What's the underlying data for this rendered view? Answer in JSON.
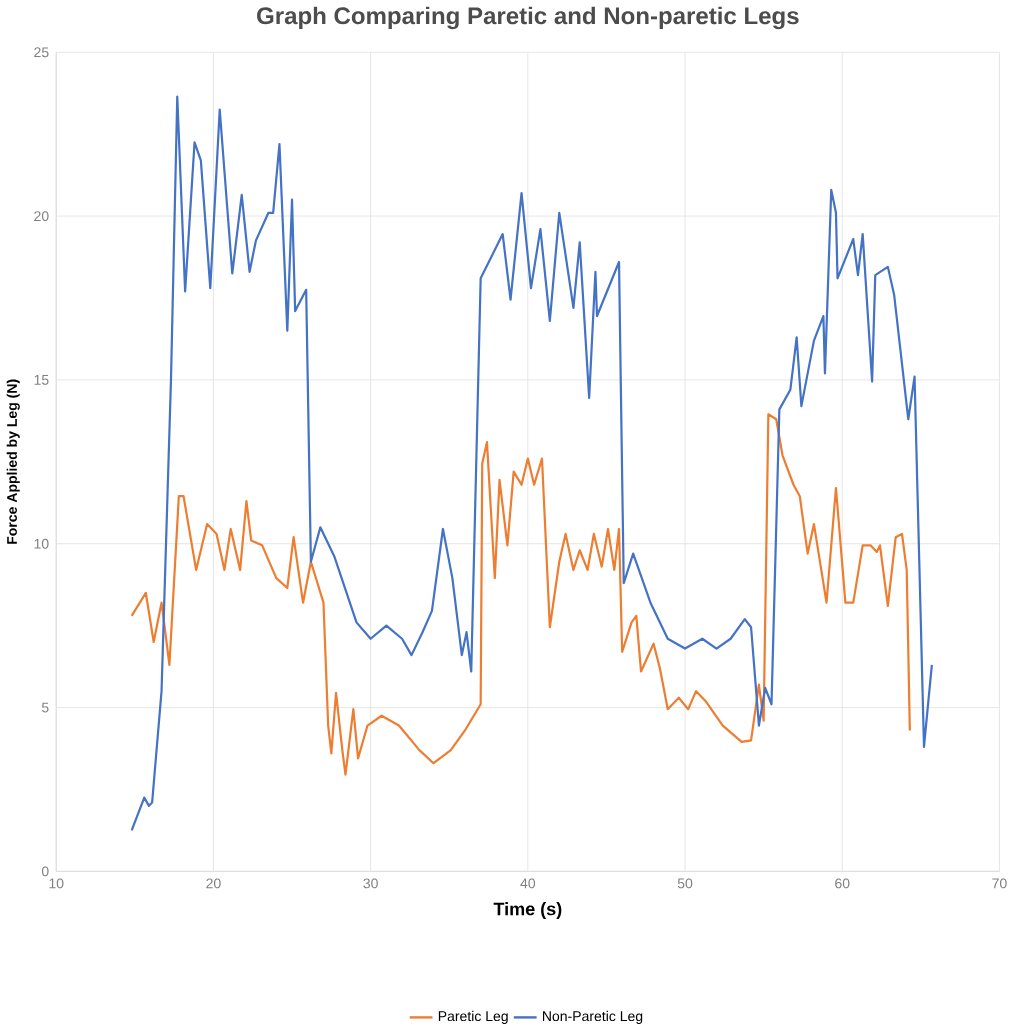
{
  "chart_data": {
    "type": "line",
    "title": "Graph Comparing Paretic and Non-paretic Legs",
    "xlabel": "Time (s)",
    "ylabel": "Force Applied by Leg (N)",
    "xlim": [
      10,
      70
    ],
    "xticks": [
      10,
      20,
      30,
      40,
      50,
      60,
      70
    ],
    "ylim": [
      0,
      25
    ],
    "yticks": [
      0,
      5,
      10,
      15,
      20,
      25
    ],
    "grid": true,
    "legend": "bottom",
    "series": [
      {
        "name": "Paretic Leg",
        "color": "#ed7d31",
        "x": [
          14.8,
          15.7,
          16.2,
          16.7,
          17.2,
          17.8,
          18.1,
          18.9,
          19.6,
          20.2,
          20.7,
          21.1,
          21.7,
          22.1,
          22.4,
          23.1,
          24.0,
          24.7,
          25.1,
          25.7,
          26.2,
          27.0,
          27.3,
          27.5,
          27.8,
          28.2,
          28.4,
          28.9,
          29.2,
          29.8,
          30.7,
          31.8,
          33.1,
          34.0,
          35.1,
          36.0,
          37.0,
          37.1,
          37.4,
          37.9,
          38.2,
          38.7,
          39.1,
          39.6,
          40.0,
          40.4,
          40.9,
          41.4,
          42.0,
          42.4,
          42.9,
          43.3,
          43.8,
          44.2,
          44.7,
          45.1,
          45.5,
          45.8,
          46.0,
          46.6,
          46.9,
          47.2,
          48.0,
          48.4,
          48.9,
          49.6,
          50.2,
          50.7,
          51.3,
          52.4,
          53.6,
          54.2,
          54.7,
          55.0,
          55.3,
          55.8,
          56.2,
          56.9,
          57.3,
          57.8,
          58.2,
          59.0,
          59.6,
          60.2,
          60.7,
          61.3,
          61.8,
          62.2,
          62.4,
          62.9,
          63.4,
          63.8,
          64.1,
          64.3
        ],
        "values": [
          7.8,
          8.5,
          7.0,
          8.2,
          6.3,
          11.45,
          11.45,
          9.2,
          10.6,
          10.3,
          9.2,
          10.45,
          9.2,
          11.3,
          10.1,
          9.95,
          8.95,
          8.65,
          10.2,
          8.2,
          9.45,
          8.2,
          4.45,
          3.6,
          5.45,
          3.7,
          2.95,
          4.95,
          3.45,
          4.45,
          4.75,
          4.45,
          3.7,
          3.3,
          3.7,
          4.3,
          5.1,
          12.45,
          13.1,
          8.95,
          11.95,
          9.95,
          12.2,
          11.8,
          12.6,
          11.8,
          12.6,
          7.45,
          9.45,
          10.3,
          9.2,
          9.8,
          9.2,
          10.3,
          9.3,
          10.45,
          9.2,
          10.45,
          6.7,
          7.6,
          7.8,
          6.1,
          6.95,
          6.2,
          4.95,
          5.3,
          4.95,
          5.5,
          5.2,
          4.45,
          3.95,
          4.0,
          5.7,
          4.6,
          13.95,
          13.8,
          12.7,
          11.8,
          11.45,
          9.7,
          10.6,
          8.2,
          11.7,
          8.2,
          8.2,
          9.95,
          9.95,
          9.75,
          9.95,
          8.1,
          10.2,
          10.3,
          9.2,
          4.3
        ]
      },
      {
        "name": "Non-Paretic Leg",
        "color": "#4472c4",
        "x": [
          14.8,
          15.6,
          15.9,
          16.1,
          16.7,
          17.3,
          17.7,
          18.2,
          18.8,
          19.2,
          19.8,
          20.4,
          21.2,
          21.8,
          22.3,
          22.7,
          23.5,
          23.8,
          24.2,
          24.7,
          25.0,
          25.2,
          25.9,
          26.2,
          26.8,
          27.7,
          29.1,
          30.0,
          31.0,
          32.0,
          32.6,
          33.3,
          33.9,
          34.6,
          35.2,
          35.8,
          36.1,
          36.4,
          37.0,
          38.4,
          38.9,
          39.6,
          40.2,
          40.8,
          41.4,
          42.0,
          42.9,
          43.3,
          43.9,
          44.3,
          44.4,
          45.8,
          46.1,
          46.7,
          47.8,
          48.9,
          50.0,
          51.1,
          52.0,
          52.9,
          53.8,
          54.2,
          54.7,
          55.1,
          55.5,
          56.0,
          56.7,
          57.1,
          57.4,
          58.2,
          58.8,
          58.9,
          59.3,
          59.6,
          59.7,
          60.2,
          60.7,
          61.0,
          61.3,
          61.9,
          62.1,
          62.9,
          63.3,
          64.2,
          64.6,
          65.2,
          65.7
        ],
        "values": [
          1.25,
          2.25,
          2.0,
          2.1,
          5.5,
          15,
          23.65,
          17.7,
          22.25,
          21.7,
          17.8,
          23.25,
          18.25,
          20.65,
          18.3,
          19.25,
          20.1,
          20.1,
          22.2,
          16.5,
          20.5,
          17.1,
          17.75,
          9.45,
          10.5,
          9.6,
          7.6,
          7.1,
          7.5,
          7.1,
          6.6,
          7.3,
          7.95,
          10.45,
          8.95,
          6.6,
          7.3,
          6.1,
          18.1,
          19.45,
          17.45,
          20.7,
          17.8,
          19.6,
          16.8,
          20.1,
          17.2,
          19.2,
          14.45,
          18.3,
          16.95,
          18.6,
          8.8,
          9.7,
          8.2,
          7.1,
          6.8,
          7.1,
          6.8,
          7.1,
          7.7,
          7.45,
          4.45,
          5.6,
          5.1,
          14.1,
          14.7,
          16.3,
          14.2,
          16.2,
          16.95,
          15.2,
          20.8,
          20.1,
          18.1,
          18.7,
          19.3,
          18.2,
          19.45,
          14.95,
          18.2,
          18.45,
          17.6,
          13.8,
          15.1,
          3.8,
          6.3
        ]
      }
    ]
  }
}
